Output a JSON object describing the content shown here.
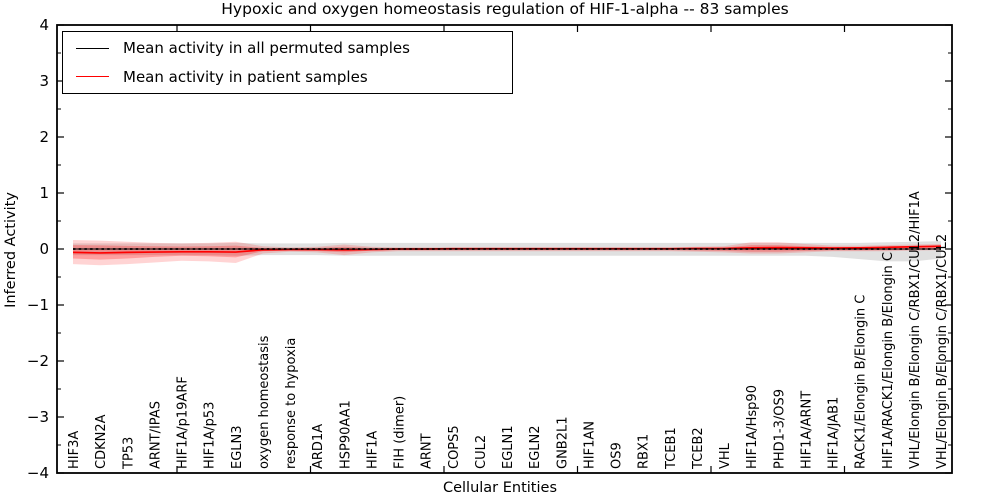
{
  "title": "Hypoxic and oxygen homeostasis regulation of HIF-1-alpha -- 83 samples",
  "legend": {
    "entries": [
      {
        "label": "Mean activity in all permuted samples",
        "color": "#000000"
      },
      {
        "label": "Mean activity in patient samples",
        "color": "#ff0000"
      }
    ]
  },
  "colors": {
    "permuted_line": "#000000",
    "patient_line": "#ff0000",
    "permuted_band": "rgba(0,0,0,0.12)",
    "patient_band": "rgba(255,0,0,0.17)",
    "patient_band_inner": "rgba(255,0,0,0.25)",
    "spine": "#000000",
    "background": "#ffffff"
  },
  "chart_data": {
    "type": "line",
    "title": "Hypoxic and oxygen homeostasis regulation of HIF-1-alpha -- 83 samples",
    "xlabel": "Cellular Entities",
    "ylabel": "Inferred Activity",
    "ylim": [
      -4,
      4
    ],
    "yticks": [
      4,
      3,
      2,
      1,
      0,
      -1,
      -2,
      -3,
      -4
    ],
    "y_minor_step": 0.5,
    "grid": false,
    "legend_position": "upper left",
    "sample_count": 83,
    "categories": [
      "HIF3A",
      "CDKN2A",
      "TP53",
      "ARNT/IPAS",
      "HIF1A/p19ARF",
      "HIF1A/p53",
      "EGLN3",
      "oxygen homeostasis",
      "response to hypoxia",
      "ARD1A",
      "HSP90AA1",
      "HIF1A",
      "FIH (dimer)",
      "ARNT",
      "COPS5",
      "CUL2",
      "EGLN1",
      "EGLN2",
      "GNB2L1",
      "HIF1AN",
      "OS9",
      "RBX1",
      "TCEB1",
      "TCEB2",
      "VHL",
      "HIF1A/Hsp90",
      "PHD1-3/OS9",
      "HIF1A/ARNT",
      "HIF1A/JAB1",
      "RACK1/Elongin B/Elongin C",
      "HIF1A/RACK1/Elongin B/Elongin C",
      "VHL/Elongin B/Elongin C/RBX1/CUL2/HIF1A",
      "VHL/Elongin B/Elongin C/RBX1/CUL2"
    ],
    "series": [
      {
        "name": "Mean activity in all permuted samples",
        "color": "#000000",
        "line_style": "dashed",
        "values": [
          0,
          0,
          0,
          0,
          0,
          0,
          0,
          0,
          0,
          0,
          0,
          0,
          0,
          0,
          0,
          0,
          0,
          0,
          0,
          0,
          0,
          0,
          0,
          0,
          0,
          0,
          0,
          0,
          0,
          0,
          0,
          0,
          0
        ],
        "band_upper": [
          0.1,
          0.1,
          0.1,
          0.1,
          0.1,
          0.1,
          0.11,
          0.1,
          0.1,
          0.1,
          0.11,
          0.11,
          0.11,
          0.11,
          0.11,
          0.11,
          0.11,
          0.11,
          0.11,
          0.11,
          0.11,
          0.11,
          0.11,
          0.11,
          0.11,
          0.11,
          0.11,
          0.11,
          0.11,
          0.11,
          0.12,
          0.13,
          0.14
        ],
        "band_lower": [
          -0.11,
          -0.11,
          -0.11,
          -0.11,
          -0.11,
          -0.11,
          -0.12,
          -0.11,
          -0.11,
          -0.11,
          -0.12,
          -0.12,
          -0.12,
          -0.12,
          -0.12,
          -0.12,
          -0.12,
          -0.12,
          -0.12,
          -0.12,
          -0.12,
          -0.12,
          -0.12,
          -0.12,
          -0.12,
          -0.12,
          -0.12,
          -0.12,
          -0.14,
          -0.18,
          -0.22,
          -0.22,
          -0.17
        ]
      },
      {
        "name": "Mean activity in patient samples",
        "color": "#ff0000",
        "line_style": "solid",
        "values": [
          -0.06,
          -0.07,
          -0.06,
          -0.055,
          -0.05,
          -0.05,
          -0.055,
          -0.015,
          -0.01,
          -0.01,
          -0.015,
          -0.01,
          0,
          0,
          0.005,
          0.005,
          0.005,
          0.005,
          0.005,
          0.005,
          0.005,
          0.005,
          0.005,
          0.01,
          0.01,
          0.02,
          0.025,
          0.02,
          0.015,
          0.02,
          0.03,
          0.04,
          0.05
        ],
        "band_upper": [
          0.16,
          0.15,
          0.13,
          0.11,
          0.1,
          0.11,
          0.13,
          0.05,
          0.03,
          0.04,
          0.08,
          0.04,
          0.03,
          0.03,
          0.03,
          0.03,
          0.03,
          0.03,
          0.03,
          0.03,
          0.03,
          0.03,
          0.03,
          0.04,
          0.05,
          0.12,
          0.12,
          0.09,
          0.06,
          0.06,
          0.07,
          0.08,
          0.09
        ],
        "band_lower": [
          -0.27,
          -0.29,
          -0.27,
          -0.24,
          -0.21,
          -0.22,
          -0.25,
          -0.08,
          -0.05,
          -0.06,
          -0.11,
          -0.06,
          -0.04,
          -0.04,
          -0.04,
          -0.04,
          -0.04,
          -0.04,
          -0.04,
          -0.04,
          -0.04,
          -0.04,
          -0.04,
          -0.05,
          -0.06,
          -0.08,
          -0.08,
          -0.06,
          -0.04,
          -0.04,
          -0.04,
          -0.03,
          -0.02
        ],
        "inner_band_upper": [
          0.07,
          0.065,
          0.055,
          0.05,
          0.045,
          0.05,
          0.06,
          0.02,
          0.015,
          0.02,
          0.04,
          0.02,
          0.015,
          0.015,
          0.015,
          0.015,
          0.015,
          0.015,
          0.015,
          0.015,
          0.015,
          0.015,
          0.015,
          0.02,
          0.025,
          0.07,
          0.07,
          0.05,
          0.035,
          0.035,
          0.04,
          0.05,
          0.055
        ],
        "inner_band_lower": [
          -0.17,
          -0.19,
          -0.17,
          -0.14,
          -0.12,
          -0.13,
          -0.15,
          -0.04,
          -0.03,
          -0.035,
          -0.06,
          -0.03,
          -0.02,
          -0.02,
          -0.02,
          -0.02,
          -0.02,
          -0.02,
          -0.02,
          -0.02,
          -0.02,
          -0.02,
          -0.02,
          -0.03,
          -0.035,
          -0.05,
          -0.05,
          -0.035,
          -0.025,
          -0.025,
          -0.02,
          -0.015,
          -0.01
        ]
      }
    ]
  }
}
